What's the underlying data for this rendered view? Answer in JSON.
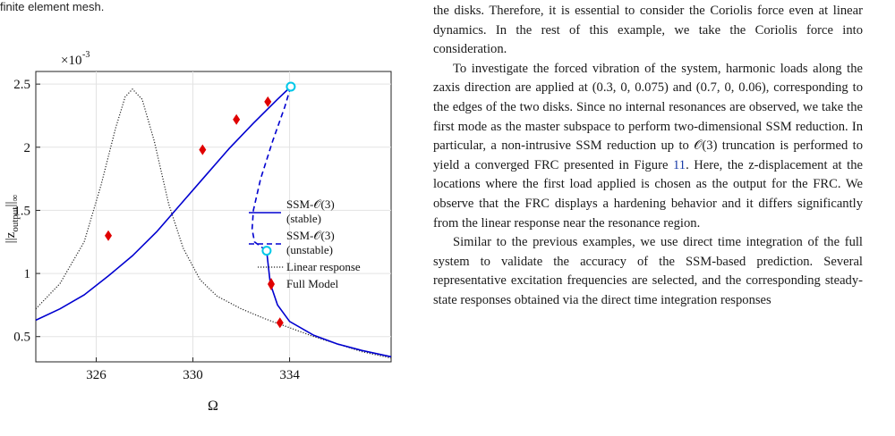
{
  "left_column": {
    "caption_fragment": "finite element mesh."
  },
  "right_column": {
    "p1": "the disks. Therefore, it is essential to consider the Coriolis force even at linear dynamics. In the rest of this example, we take the Coriolis force into consideration.",
    "p2_a": "To investigate the forced vibration of the system, harmonic loads along the zaxis direction are applied at (0.3, 0, 0.075) and (0.7, 0, 0.06), corresponding to the edges of the two disks. Since no internal resonances are observed, we take the first mode as the master subspace to perform two-dimensional SSM reduction. In particular, a non-intrusive SSM reduction up to 𝒪(3) truncation is performed to yield a converged FRC presented in Figure ",
    "p2_ref": "11",
    "p2_b": ". Here, the z-displacement at the locations where the first load applied is chosen as the output for the FRC. We observe that the FRC displays a hardening behavior and it differs significantly from the linear response near the resonance region.",
    "p3": "Similar to the previous examples, we use direct time integration of the full system to validate the accuracy of the SSM-based prediction. Several representative excitation frequencies are selected, and the corresponding steady-state responses obtained via the direct time integration responses"
  },
  "chart_data": {
    "type": "line",
    "xlabel": "Ω",
    "ylabel": "||z_output||∞",
    "y_multiplier": "×10-3",
    "xlim": [
      323.5,
      338.2
    ],
    "ylim": [
      0.3,
      2.6
    ],
    "xticks": [
      326,
      330,
      334
    ],
    "yticks": [
      0.5,
      1,
      1.5,
      2,
      2.5
    ],
    "colors": {
      "ssm": "#0000d0",
      "linear": "#222222",
      "full": "#e00000",
      "bifurcation": "#00c8e8"
    },
    "series": [
      {
        "name": "SSM-𝒪(3) (stable)",
        "style": "solid",
        "segments": [
          [
            [
              323.5,
              0.63
            ],
            [
              324.5,
              0.72
            ],
            [
              325.5,
              0.83
            ],
            [
              326.5,
              0.98
            ],
            [
              327.5,
              1.14
            ],
            [
              328.5,
              1.33
            ],
            [
              329.5,
              1.55
            ],
            [
              330.5,
              1.77
            ],
            [
              331.5,
              1.99
            ],
            [
              332.5,
              2.19
            ],
            [
              333.5,
              2.38
            ],
            [
              334.05,
              2.48
            ]
          ],
          [
            [
              333.05,
              1.18
            ],
            [
              333.2,
              0.92
            ],
            [
              333.5,
              0.75
            ],
            [
              334.0,
              0.62
            ],
            [
              335.0,
              0.51
            ],
            [
              336.0,
              0.44
            ],
            [
              337.0,
              0.39
            ],
            [
              338.2,
              0.34
            ]
          ]
        ]
      },
      {
        "name": "SSM-𝒪(3) (unstable)",
        "style": "dashed",
        "segments": [
          [
            [
              334.05,
              2.48
            ],
            [
              333.8,
              2.32
            ],
            [
              333.3,
              2.05
            ],
            [
              332.8,
              1.75
            ],
            [
              332.5,
              1.5
            ],
            [
              332.45,
              1.35
            ],
            [
              332.55,
              1.25
            ],
            [
              333.05,
              1.18
            ]
          ]
        ]
      },
      {
        "name": "Linear response",
        "style": "dotted",
        "points": [
          [
            323.5,
            0.72
          ],
          [
            324.5,
            0.92
          ],
          [
            325.5,
            1.25
          ],
          [
            326.2,
            1.7
          ],
          [
            326.8,
            2.15
          ],
          [
            327.2,
            2.4
          ],
          [
            327.5,
            2.46
          ],
          [
            327.9,
            2.38
          ],
          [
            328.4,
            2.05
          ],
          [
            329.0,
            1.55
          ],
          [
            329.6,
            1.2
          ],
          [
            330.3,
            0.95
          ],
          [
            331.0,
            0.82
          ],
          [
            332.0,
            0.72
          ],
          [
            333.0,
            0.64
          ],
          [
            334.0,
            0.57
          ],
          [
            335.0,
            0.5
          ],
          [
            336.0,
            0.44
          ],
          [
            337.0,
            0.38
          ],
          [
            338.2,
            0.33
          ]
        ]
      },
      {
        "name": "Full Model",
        "style": "markers",
        "points": [
          [
            326.5,
            1.3
          ],
          [
            330.4,
            1.98
          ],
          [
            331.8,
            2.22
          ],
          [
            333.1,
            2.36
          ],
          [
            333.6,
            0.61
          ]
        ]
      }
    ],
    "bifurcation_points": [
      [
        334.05,
        2.48
      ],
      [
        333.05,
        1.18
      ]
    ]
  }
}
